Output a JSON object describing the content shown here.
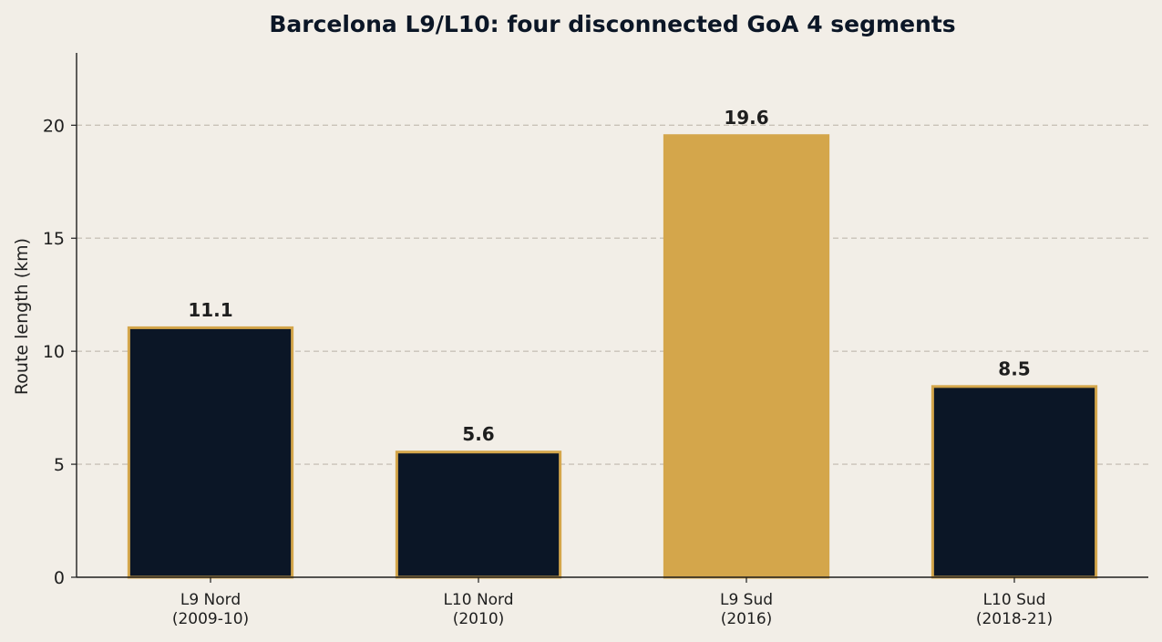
{
  "chart_data": {
    "type": "bar",
    "title": "Barcelona L9/L10: four disconnected GoA 4 segments",
    "ylabel": "Route length (km)",
    "xlabel": "",
    "ylim": [
      0,
      23.2
    ],
    "yticks": [
      0,
      5,
      10,
      15,
      20
    ],
    "grid": "horizontal-dashed",
    "categories": [
      [
        "L9 Nord",
        "(2009-10)"
      ],
      [
        "L10 Nord",
        "(2010)"
      ],
      [
        "L9 Sud",
        "(2016)"
      ],
      [
        "L10 Sud",
        "(2018-21)"
      ]
    ],
    "values": [
      11.1,
      5.6,
      19.6,
      8.5
    ],
    "value_labels": [
      "11.1",
      "5.6",
      "19.6",
      "8.5"
    ],
    "highlighted": [
      false,
      false,
      true,
      false
    ]
  },
  "colors": {
    "background": "#f2eee7",
    "bar": "#0b1626",
    "highlight": "#d4a64b",
    "edge": "#d4a64b",
    "grid": "#c9c2b8",
    "axis": "#1e1e1e"
  }
}
